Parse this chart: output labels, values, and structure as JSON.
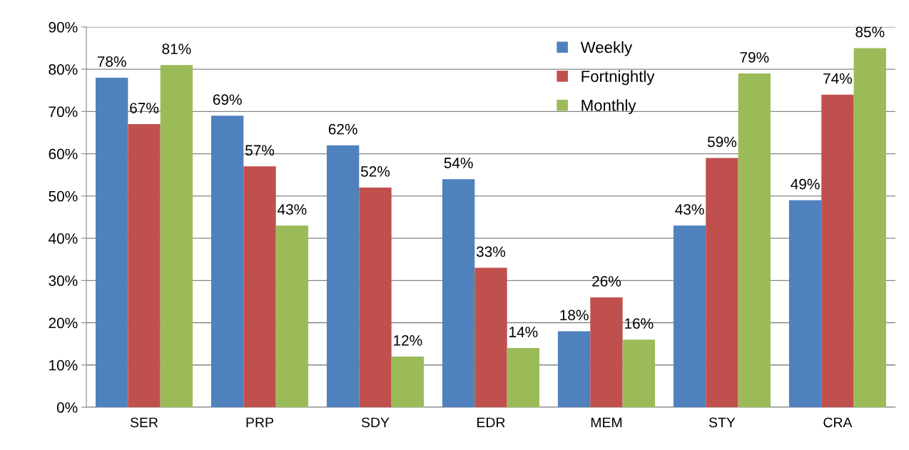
{
  "chart_data": {
    "type": "bar",
    "categories": [
      "SER",
      "PRP",
      "SDY",
      "EDR",
      "MEM",
      "STY",
      "CRA"
    ],
    "series": [
      {
        "name": "Weekly",
        "color": "#4f81bd",
        "values": [
          78,
          69,
          62,
          54,
          18,
          43,
          49
        ],
        "value_labels": [
          "78%",
          "69%",
          "62%",
          "54%",
          "18%",
          "43%",
          "49%"
        ]
      },
      {
        "name": "Fortnightly",
        "color": "#c0504d",
        "values": [
          67,
          57,
          52,
          33,
          26,
          59,
          74
        ],
        "value_labels": [
          "67%",
          "57%",
          "52%",
          "33%",
          "26%",
          "59%",
          "74%"
        ]
      },
      {
        "name": "Monthly",
        "color": "#9bbb59",
        "values": [
          81,
          43,
          12,
          14,
          16,
          79,
          85
        ],
        "value_labels": [
          "81%",
          "43%",
          "12%",
          "14%",
          "16%",
          "79%",
          "85%"
        ]
      }
    ],
    "ylim": [
      0,
      90
    ],
    "yticks": [
      {
        "value": 0,
        "label": "0%"
      },
      {
        "value": 10,
        "label": "10%"
      },
      {
        "value": 20,
        "label": "20%"
      },
      {
        "value": 30,
        "label": "30%"
      },
      {
        "value": 40,
        "label": "40%"
      },
      {
        "value": 50,
        "label": "50%"
      },
      {
        "value": 60,
        "label": "60%"
      },
      {
        "value": 70,
        "label": "70%"
      },
      {
        "value": 80,
        "label": "80%"
      },
      {
        "value": 90,
        "label": "90%"
      }
    ],
    "grid": "y",
    "legend": "top right"
  }
}
